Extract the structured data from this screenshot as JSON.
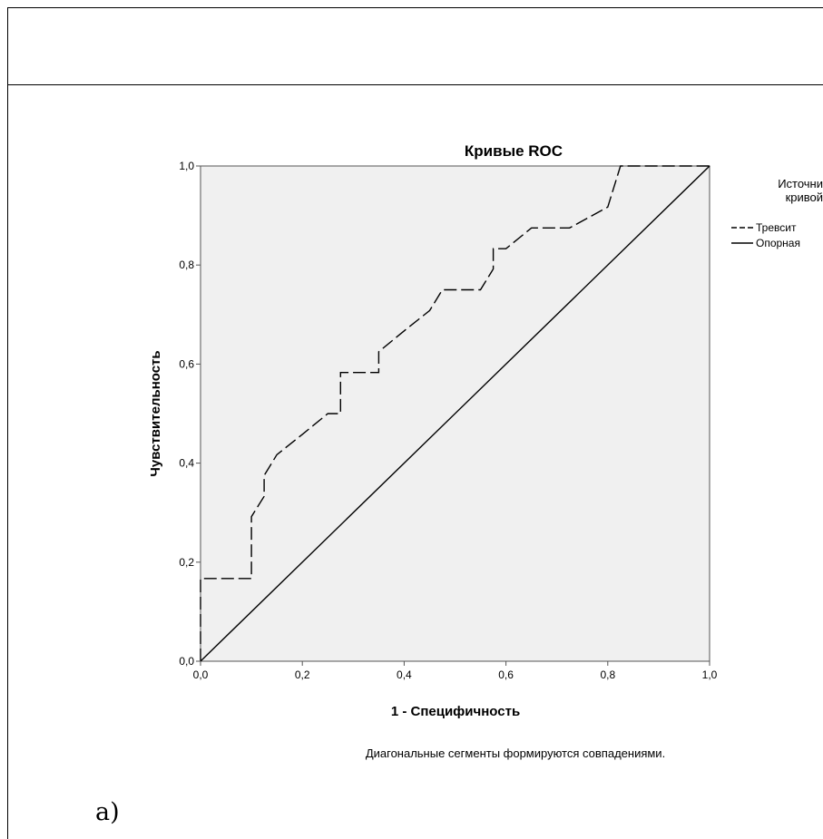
{
  "panel_label": "а)",
  "chart_data": {
    "type": "line",
    "title": "Кривые ROC",
    "xlabel": "1 - Специфичность",
    "ylabel": "Чувствительность",
    "xlim": [
      0,
      1
    ],
    "ylim": [
      0,
      1
    ],
    "xticks": [
      "0,0",
      "0,2",
      "0,4",
      "0,6",
      "0,8",
      "1,0"
    ],
    "yticks": [
      "0,0",
      "0,2",
      "0,4",
      "0,6",
      "0,8",
      "1,0"
    ],
    "tick_values": [
      0,
      0.2,
      0.4,
      0.6,
      0.8,
      1.0
    ],
    "footnote": "Диагональные сегменты формируются совпадениями.",
    "legend": {
      "title": "Источни\nкривой",
      "placement": "right"
    },
    "colors": {
      "plot_bg": "#f0f0f0",
      "line": "#000000"
    },
    "grid": false,
    "series": [
      {
        "name": "Тревсит",
        "style": "dashed",
        "x": [
          0,
          0,
          0.1,
          0.1,
          0.125,
          0.125,
          0.15,
          0.2,
          0.25,
          0.275,
          0.275,
          0.35,
          0.35,
          0.4,
          0.45,
          0.475,
          0.55,
          0.575,
          0.575,
          0.6,
          0.65,
          0.725,
          0.8,
          0.825,
          1.0
        ],
        "y": [
          0,
          0.167,
          0.167,
          0.292,
          0.333,
          0.375,
          0.417,
          0.458,
          0.5,
          0.5,
          0.583,
          0.583,
          0.625,
          0.667,
          0.708,
          0.75,
          0.75,
          0.792,
          0.833,
          0.833,
          0.875,
          0.875,
          0.917,
          1.0,
          1.0
        ]
      },
      {
        "name": "Опорная",
        "style": "solid",
        "x": [
          0,
          1
        ],
        "y": [
          0,
          1
        ]
      }
    ]
  }
}
